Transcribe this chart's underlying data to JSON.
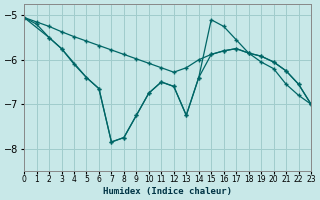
{
  "xlabel": "Humidex (Indice chaleur)",
  "background_color": "#c8e8e8",
  "grid_color": "#a0cccc",
  "line_color": "#006666",
  "xlim": [
    0,
    23
  ],
  "ylim": [
    -8.5,
    -4.75
  ],
  "yticks": [
    -8,
    -7,
    -6,
    -5
  ],
  "xticks": [
    0,
    1,
    2,
    3,
    4,
    5,
    6,
    7,
    8,
    9,
    10,
    11,
    12,
    13,
    14,
    15,
    16,
    17,
    18,
    19,
    20,
    21,
    22,
    23
  ],
  "series1_x": [
    0,
    1,
    2,
    3,
    4,
    5,
    6,
    7,
    8,
    9,
    10,
    11,
    12,
    13,
    14,
    15,
    16,
    17,
    18,
    19,
    20,
    21,
    22,
    23
  ],
  "series1_y": [
    -5.05,
    -5.15,
    -5.25,
    -5.37,
    -5.48,
    -5.58,
    -5.68,
    -5.78,
    -5.88,
    -5.98,
    -6.08,
    -6.18,
    -6.28,
    -6.18,
    -6.0,
    -5.88,
    -5.8,
    -5.75,
    -5.85,
    -5.92,
    -6.05,
    -6.25,
    -6.55,
    -7.0
  ],
  "series2_x": [
    0,
    1,
    2,
    3,
    4,
    5,
    6,
    7,
    8,
    9,
    10,
    11,
    12,
    13,
    14,
    15,
    16,
    17,
    18,
    19,
    20,
    21,
    22,
    23
  ],
  "series2_y": [
    -5.05,
    -5.2,
    -5.5,
    -5.75,
    -6.1,
    -6.4,
    -6.65,
    -7.85,
    -7.75,
    -7.25,
    -6.75,
    -6.5,
    -6.6,
    -7.25,
    -6.4,
    -5.88,
    -5.8,
    -5.75,
    -5.85,
    -5.92,
    -6.05,
    -6.25,
    -6.55,
    -7.0
  ],
  "series3_x": [
    0,
    2,
    3,
    5,
    6,
    7,
    8,
    9,
    10,
    11,
    12,
    13,
    14,
    15,
    16,
    17,
    18,
    19,
    20,
    21,
    22,
    23
  ],
  "series3_y": [
    -5.05,
    -5.5,
    -5.75,
    -6.4,
    -6.65,
    -7.85,
    -7.75,
    -7.25,
    -6.75,
    -6.5,
    -6.6,
    -7.25,
    -6.4,
    -5.1,
    -5.25,
    -5.55,
    -5.85,
    -6.05,
    -6.2,
    -6.55,
    -6.8,
    -7.0
  ]
}
